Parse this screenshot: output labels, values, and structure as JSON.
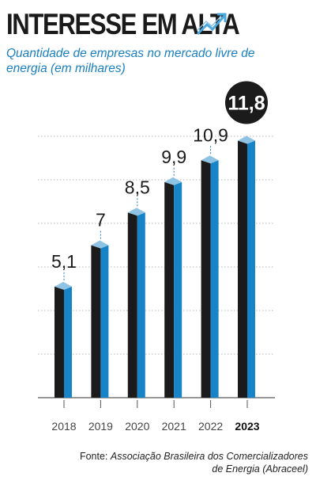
{
  "title": "INTERESSE EM ALTA",
  "subtitle": "Quantidade de empresas no mercado livre de energia (em milhares)",
  "trend_icon": "arrow-trending-up-icon",
  "source": {
    "label": "Fonte:",
    "text": "Associação Brasileira dos Comercializadores de Energia (Abraceel)"
  },
  "colors": {
    "accent_blue": "#1a7fbf",
    "bar_front": "#1b1b1b",
    "bar_side": "#1784c8",
    "bar_top": "#8ec3e4",
    "highlight_circle": "#1b1b1b"
  },
  "chart_data": {
    "type": "bar",
    "categories": [
      "2018",
      "2019",
      "2020",
      "2021",
      "2022",
      "2023"
    ],
    "values": [
      5.1,
      7,
      8.5,
      9.9,
      10.9,
      11.8
    ],
    "value_labels": [
      "5,1",
      "7",
      "8,5",
      "9,9",
      "10,9",
      "11,8"
    ],
    "highlight_index": 5,
    "ylim": [
      0,
      12
    ],
    "grid": true
  }
}
